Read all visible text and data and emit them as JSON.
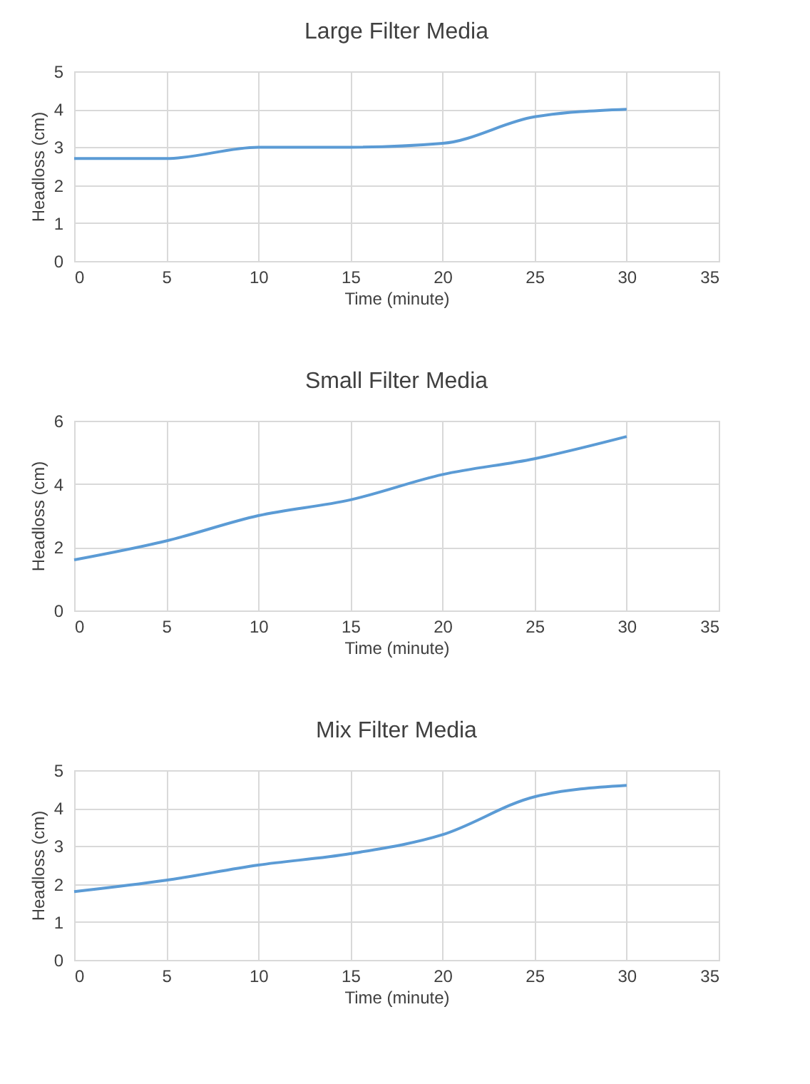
{
  "chart_data": [
    {
      "type": "line",
      "title": "Large Filter Media",
      "xlabel": "Time (minute)",
      "ylabel": "Headloss (cm)",
      "x": [
        0,
        5,
        10,
        15,
        20,
        25,
        30
      ],
      "series": [
        {
          "color": "#5b9bd5",
          "values": [
            2.7,
            2.7,
            3.0,
            3.0,
            3.1,
            3.8,
            4.0
          ]
        }
      ],
      "xlim": [
        0,
        35
      ],
      "xticks": [
        0,
        5,
        10,
        15,
        20,
        25,
        30,
        35
      ],
      "ylim": [
        0,
        5
      ],
      "yticks": [
        0,
        1,
        2,
        3,
        4,
        5
      ],
      "grid": true
    },
    {
      "type": "line",
      "title": "Small Filter Media",
      "xlabel": "Time (minute)",
      "ylabel": "Headloss (cm)",
      "x": [
        0,
        5,
        10,
        15,
        20,
        25,
        30
      ],
      "series": [
        {
          "color": "#5b9bd5",
          "values": [
            1.6,
            2.2,
            3.0,
            3.5,
            4.3,
            4.8,
            5.5
          ]
        }
      ],
      "xlim": [
        0,
        35
      ],
      "xticks": [
        0,
        5,
        10,
        15,
        20,
        25,
        30,
        35
      ],
      "ylim": [
        0,
        6
      ],
      "yticks": [
        0,
        2,
        4,
        6
      ],
      "grid": true
    },
    {
      "type": "line",
      "title": "Mix Filter Media",
      "xlabel": "Time (minute)",
      "ylabel": "Headloss (cm)",
      "x": [
        0,
        5,
        10,
        15,
        20,
        25,
        30
      ],
      "series": [
        {
          "color": "#5b9bd5",
          "values": [
            1.8,
            2.1,
            2.5,
            2.8,
            3.3,
            4.3,
            4.6
          ]
        }
      ],
      "xlim": [
        0,
        35
      ],
      "xticks": [
        0,
        5,
        10,
        15,
        20,
        25,
        30,
        35
      ],
      "ylim": [
        0,
        5
      ],
      "yticks": [
        0,
        1,
        2,
        3,
        4,
        5
      ],
      "grid": true
    }
  ]
}
